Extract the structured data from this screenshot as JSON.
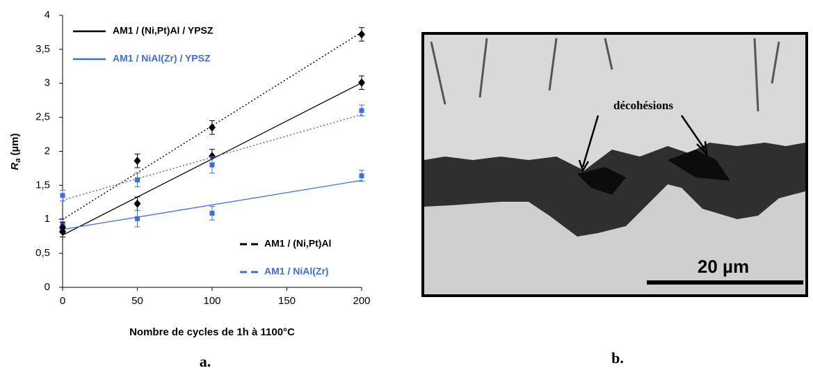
{
  "chart_data": {
    "type": "scatter",
    "xlabel": "Nombre de cycles de 1h à 1100°C",
    "ylabel_main": "R",
    "ylabel_sub": "a",
    "ylabel_unit": "(µm)",
    "x": [
      0,
      50,
      100,
      200
    ],
    "series": [
      {
        "name": "AM1 / (Ni,Pt)Al / YPSZ",
        "color": "#000000",
        "marker": "diamond",
        "trend": "solid",
        "values": [
          0.82,
          1.23,
          1.93,
          3.01
        ],
        "errors": [
          0.08,
          0.1,
          0.1,
          0.1
        ]
      },
      {
        "name": "AM1 / NiAl(Zr) / YPSZ",
        "color": "#3b6fe0",
        "marker": "square",
        "trend": "solid",
        "values": [
          0.93,
          1.01,
          1.09,
          1.64
        ],
        "errors": [
          0.08,
          0.12,
          0.1,
          0.08
        ]
      },
      {
        "name": "AM1 / (Ni,Pt)Al",
        "color": "#000000",
        "marker": "diamond",
        "trend": "dashed",
        "values": [
          0.88,
          1.86,
          2.35,
          3.72
        ],
        "errors": [
          0.08,
          0.1,
          0.1,
          0.1
        ]
      },
      {
        "name": "AM1 / NiAl(Zr)",
        "color": "#3b6fe0",
        "marker": "square",
        "trend": "dashed",
        "values": [
          1.35,
          1.58,
          1.8,
          2.6
        ],
        "errors": [
          0.08,
          0.1,
          0.12,
          0.08
        ]
      }
    ],
    "xlim": [
      0,
      200
    ],
    "xticks": [
      0,
      50,
      100,
      150,
      200
    ],
    "ylim": [
      0,
      4
    ],
    "yticks": [
      0,
      {
        "value": 0.5,
        "label": "0,5"
      },
      1,
      {
        "value": 1.5,
        "label": "1,5"
      },
      2,
      {
        "value": 2.5,
        "label": "2,5"
      },
      3,
      {
        "value": 3.5,
        "label": "3,5"
      },
      4
    ],
    "grid": false
  },
  "caption_a": "a.",
  "figure_b": {
    "annotation": "décohésions",
    "scale_bar": "20 µm",
    "caption": "b."
  }
}
